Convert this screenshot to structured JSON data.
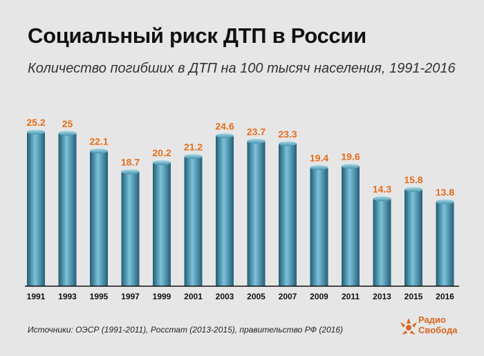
{
  "title": "Социальный риск ДТП в России",
  "subtitle": "Количество погибших в ДТП на 100 тысяч населения, 1991-2016",
  "source": "Источники: ОЭСР (1991-2011), Росстат (2013-2015), правительство РФ (2016)",
  "logo": {
    "line1": "Радио",
    "line2": "Свобода",
    "icon": "radio-svoboda-logo-icon"
  },
  "colors": {
    "bar": "#3d8aa6",
    "value_label": "#e56c1a",
    "background": "#e6e6e6"
  },
  "chart_data": {
    "type": "bar",
    "title": "Социальный риск ДТП в России",
    "subtitle": "Количество погибших в ДТП на 100 тысяч населения, 1991-2016",
    "xlabel": "",
    "ylabel": "",
    "grid": false,
    "ylim": [
      0,
      25.2
    ],
    "categories": [
      "1991",
      "1993",
      "1995",
      "1997",
      "1999",
      "2001",
      "2003",
      "2005",
      "2007",
      "2009",
      "2011",
      "2013",
      "2015",
      "2016"
    ],
    "values": [
      25.2,
      25,
      22.1,
      18.7,
      20.2,
      21.2,
      24.6,
      23.7,
      23.3,
      19.4,
      19.6,
      14.3,
      15.8,
      13.8
    ]
  }
}
